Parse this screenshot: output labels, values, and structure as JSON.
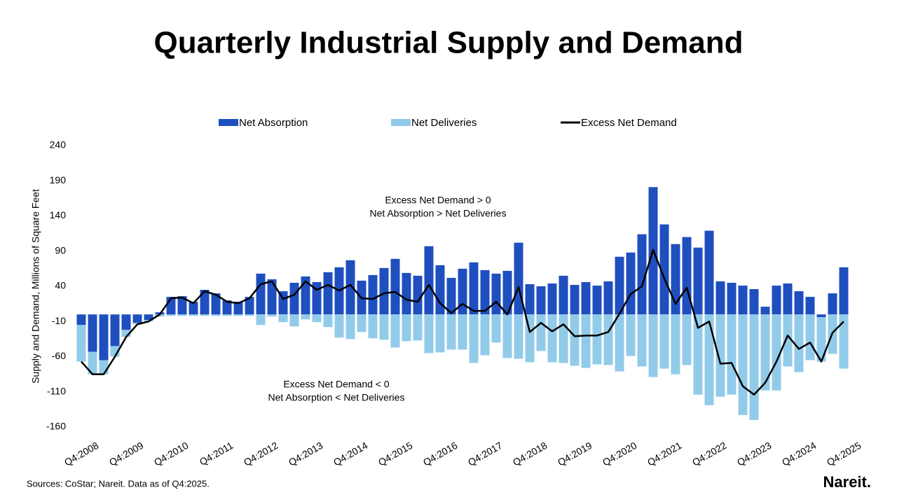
{
  "chart_data": {
    "type": "bar",
    "title": "Quarterly Industrial Supply and Demand",
    "y_label": "Supply and Demand, Millions of Square Feet",
    "source": "Sources: CoStar; Nareit. Data as of Q4:2025.",
    "logo": "Nareit.",
    "annotations": [
      [
        "Excess Net Demand > 0",
        "Net Absorption > Net Deliveries"
      ],
      [
        "Excess Net Demand < 0",
        "Net Absorption < Net Deliveries"
      ]
    ],
    "stacked": true,
    "ylim": [
      -160,
      240
    ],
    "yticks": [
      -160,
      -110,
      -60,
      -10,
      40,
      90,
      140,
      190,
      240
    ],
    "grid": false,
    "categories": [
      "Q4:2008",
      null,
      null,
      null,
      "Q4:2009",
      null,
      null,
      null,
      "Q4:2010",
      null,
      null,
      null,
      "Q4:2011",
      null,
      null,
      null,
      "Q4:2012",
      null,
      null,
      null,
      "Q4:2013",
      null,
      null,
      null,
      "Q4:2014",
      null,
      null,
      null,
      "Q4:2015",
      null,
      null,
      null,
      "Q4:2016",
      null,
      null,
      null,
      "Q4:2017",
      null,
      null,
      null,
      "Q4:2018",
      null,
      null,
      null,
      "Q4:2019",
      null,
      null,
      null,
      "Q4:2020",
      null,
      null,
      null,
      "Q4:2021",
      null,
      null,
      null,
      "Q4:2022",
      null,
      null,
      null,
      "Q4:2023",
      null,
      null,
      null,
      "Q4:2024",
      null,
      null,
      null,
      "Q4:2025"
    ],
    "series": [
      {
        "name": "Net Absorption",
        "type": "bar",
        "color": "#1f4fbf",
        "values": [
          -15,
          -53,
          -65,
          -45,
          -22,
          -12,
          -8,
          3,
          25,
          26,
          18,
          35,
          30,
          20,
          18,
          25,
          58,
          50,
          33,
          45,
          54,
          46,
          60,
          67,
          77,
          48,
          56,
          66,
          79,
          59,
          55,
          97,
          70,
          52,
          65,
          74,
          63,
          58,
          62,
          102,
          43,
          40,
          44,
          55,
          42,
          46,
          41,
          47,
          82,
          88,
          114,
          181,
          128,
          100,
          110,
          95,
          119,
          47,
          45,
          41,
          36,
          11,
          41,
          44,
          33,
          25,
          -4,
          30,
          67
        ]
      },
      {
        "name": "Net Deliveries",
        "type": "bar",
        "color": "#92cbe9",
        "values": [
          -52,
          -32,
          -20,
          -15,
          -10,
          -2,
          -2,
          -3,
          -2,
          -2,
          -2,
          -2,
          -2,
          -2,
          -2,
          -2,
          -15,
          -3,
          -11,
          -17,
          -7,
          -11,
          -18,
          -33,
          -35,
          -25,
          -34,
          -36,
          -47,
          -38,
          -37,
          -55,
          -54,
          -50,
          -50,
          -69,
          -58,
          -40,
          -62,
          -63,
          -68,
          -52,
          -68,
          -69,
          -73,
          -76,
          -71,
          -72,
          -81,
          -59,
          -74,
          -89,
          -77,
          -85,
          -72,
          -114,
          -129,
          -117,
          -114,
          -143,
          -150,
          -108,
          -108,
          -74,
          -82,
          -65,
          -63,
          -56,
          -77
        ]
      },
      {
        "name": "Excess Net Demand",
        "type": "line",
        "color": "#000000",
        "values": [
          -67,
          -85,
          -85,
          -60,
          -32,
          -14,
          -10,
          0,
          23,
          24,
          16,
          33,
          28,
          18,
          16,
          23,
          43,
          47,
          22,
          28,
          47,
          35,
          42,
          34,
          42,
          23,
          22,
          30,
          32,
          21,
          18,
          42,
          16,
          2,
          15,
          5,
          5,
          18,
          0,
          39,
          -25,
          -12,
          -24,
          -14,
          -31,
          -30,
          -30,
          -25,
          1,
          29,
          40,
          92,
          51,
          15,
          38,
          -19,
          -10,
          -70,
          -69,
          -102,
          -114,
          -97,
          -67,
          -30,
          -49,
          -40,
          -67,
          -26,
          -10
        ]
      }
    ]
  }
}
